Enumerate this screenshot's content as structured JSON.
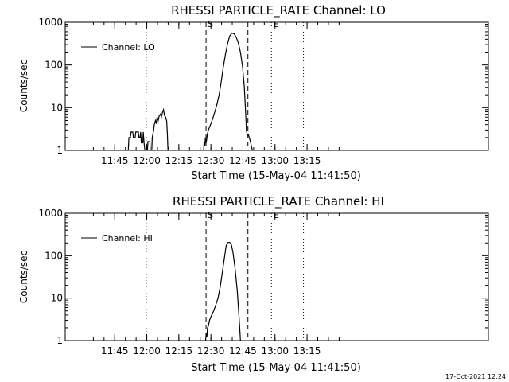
{
  "chart_data": [
    {
      "type": "line",
      "title": "RHESSI PARTICLE_RATE Channel: LO",
      "xlabel": "Start Time (15-May-04 11:41:50)",
      "ylabel": "Counts/sec",
      "yscale": "log",
      "ylim": [
        1,
        1000
      ],
      "xlim_minutes": [
        -20,
        178
      ],
      "x_unit": "minutes since 11:41:50",
      "yticks": [
        {
          "v": 1,
          "label": "1"
        },
        {
          "v": 10,
          "label": "10"
        },
        {
          "v": 100,
          "label": "100"
        },
        {
          "v": 1000,
          "label": "1000"
        }
      ],
      "xticks": [
        {
          "t": 3.17,
          "label": "11:45"
        },
        {
          "t": 18.17,
          "label": "12:00"
        },
        {
          "t": 33.17,
          "label": "12:15"
        },
        {
          "t": 48.17,
          "label": "12:30"
        },
        {
          "t": 63.17,
          "label": "12:45"
        },
        {
          "t": 78.17,
          "label": "13:00"
        },
        {
          "t": 93.17,
          "label": "13:15"
        }
      ],
      "legend": {
        "label": "Channel: LO",
        "position": "top-left"
      },
      "markers": [
        {
          "t": 17.9,
          "style": "dotted",
          "label": ""
        },
        {
          "t": 45.9,
          "style": "dashed",
          "label": "S"
        },
        {
          "t": 65.5,
          "style": "dashed",
          "label": ""
        },
        {
          "t": 76.5,
          "style": "dotted",
          "label": "E"
        },
        {
          "t": 91.5,
          "style": "dotted",
          "label": ""
        }
      ],
      "series": [
        {
          "name": "Channel: LO",
          "segments": [
            [
              [
                9.5,
                1
              ],
              [
                9.8,
                2
              ],
              [
                10.5,
                2
              ],
              [
                10.8,
                2.7
              ],
              [
                11.6,
                2.7
              ],
              [
                11.9,
                2
              ],
              [
                12.7,
                2
              ],
              [
                13,
                2.7
              ],
              [
                14.2,
                2.7
              ],
              [
                14.5,
                2
              ],
              [
                15,
                2
              ],
              [
                15.3,
                2.7
              ],
              [
                15.6,
                1.5
              ],
              [
                16.3,
                1.5
              ],
              [
                16.5,
                2.7
              ],
              [
                16.9,
                1.5
              ],
              [
                17.1,
                1.2
              ],
              [
                17.3,
                1
              ]
            ],
            [
              [
                18.5,
                1
              ],
              [
                18.7,
                1.6
              ],
              [
                19.6,
                1.6
              ],
              [
                19.8,
                1
              ]
            ],
            [
              [
                20.5,
                1
              ],
              [
                20.7,
                2
              ],
              [
                21.3,
                2.8
              ],
              [
                21.7,
                4
              ],
              [
                22.2,
                5
              ],
              [
                22.6,
                4.2
              ],
              [
                23,
                6
              ],
              [
                23.5,
                5
              ],
              [
                24,
                6.5
              ],
              [
                24.5,
                7
              ],
              [
                25,
                6
              ],
              [
                25.6,
                8
              ],
              [
                26,
                9
              ],
              [
                26.5,
                6.5
              ],
              [
                27,
                6
              ],
              [
                27.5,
                4.8
              ],
              [
                27.8,
                2.5
              ],
              [
                28.1,
                1
              ]
            ],
            [
              [
                44.8,
                1
              ],
              [
                45,
                1.6
              ],
              [
                45.3,
                1.3
              ],
              [
                45.6,
                2
              ],
              [
                45.9,
                1.5
              ],
              [
                46.2,
                1.8
              ],
              [
                46.5,
                2.4
              ],
              [
                47,
                3
              ],
              [
                48,
                4
              ],
              [
                49,
                5.5
              ],
              [
                50,
                8
              ],
              [
                51,
                12
              ],
              [
                52,
                20
              ],
              [
                53,
                40
              ],
              [
                54,
                90
              ],
              [
                55,
                180
              ],
              [
                56,
                320
              ],
              [
                57,
                480
              ],
              [
                58,
                560
              ],
              [
                59,
                540
              ],
              [
                60,
                450
              ],
              [
                61,
                330
              ],
              [
                62,
                200
              ],
              [
                63,
                90
              ],
              [
                63.8,
                30
              ],
              [
                64.4,
                8
              ],
              [
                64.8,
                3
              ],
              [
                65.2,
                2.3
              ],
              [
                65.8,
                2.3
              ],
              [
                66.4,
                1.8
              ],
              [
                66.8,
                1.5
              ],
              [
                67.2,
                1.2
              ],
              [
                67.6,
                1
              ]
            ]
          ]
        }
      ]
    },
    {
      "type": "line",
      "title": "RHESSI PARTICLE_RATE Channel: HI",
      "xlabel": "Start Time (15-May-04 11:41:50)",
      "ylabel": "Counts/sec",
      "yscale": "log",
      "ylim": [
        1,
        1000
      ],
      "xlim_minutes": [
        -20,
        178
      ],
      "x_unit": "minutes since 11:41:50",
      "yticks": [
        {
          "v": 1,
          "label": "1"
        },
        {
          "v": 10,
          "label": "10"
        },
        {
          "v": 100,
          "label": "100"
        },
        {
          "v": 1000,
          "label": "1000"
        }
      ],
      "xticks": [
        {
          "t": 3.17,
          "label": "11:45"
        },
        {
          "t": 18.17,
          "label": "12:00"
        },
        {
          "t": 33.17,
          "label": "12:15"
        },
        {
          "t": 48.17,
          "label": "12:30"
        },
        {
          "t": 63.17,
          "label": "12:45"
        },
        {
          "t": 78.17,
          "label": "13:00"
        },
        {
          "t": 93.17,
          "label": "13:15"
        }
      ],
      "legend": {
        "label": "Channel: HI",
        "position": "top-left"
      },
      "markers": [
        {
          "t": 17.9,
          "style": "dotted",
          "label": ""
        },
        {
          "t": 45.9,
          "style": "dashed",
          "label": "S"
        },
        {
          "t": 65.5,
          "style": "dashed",
          "label": ""
        },
        {
          "t": 76.5,
          "style": "dotted",
          "label": "E"
        },
        {
          "t": 91.5,
          "style": "dotted",
          "label": ""
        }
      ],
      "series": [
        {
          "name": "Channel: HI",
          "segments": [
            [
              [
                45.7,
                1
              ],
              [
                46,
                1.5
              ],
              [
                46.3,
                1.2
              ],
              [
                46.6,
                2
              ],
              [
                47,
                2.2
              ],
              [
                47.5,
                3
              ],
              [
                48.5,
                4
              ],
              [
                49.5,
                5
              ],
              [
                50.5,
                7
              ],
              [
                51.5,
                10
              ],
              [
                52.5,
                18
              ],
              [
                53.5,
                40
              ],
              [
                54.5,
                90
              ],
              [
                55.3,
                170
              ],
              [
                56,
                205
              ],
              [
                57,
                205
              ],
              [
                57.8,
                180
              ],
              [
                58.5,
                120
              ],
              [
                59.5,
                50
              ],
              [
                60.5,
                15
              ],
              [
                61.3,
                4
              ],
              [
                61.8,
                1.5
              ],
              [
                62,
                1
              ]
            ]
          ]
        }
      ]
    }
  ],
  "timestamp": "17-Oct-2021 12:24"
}
